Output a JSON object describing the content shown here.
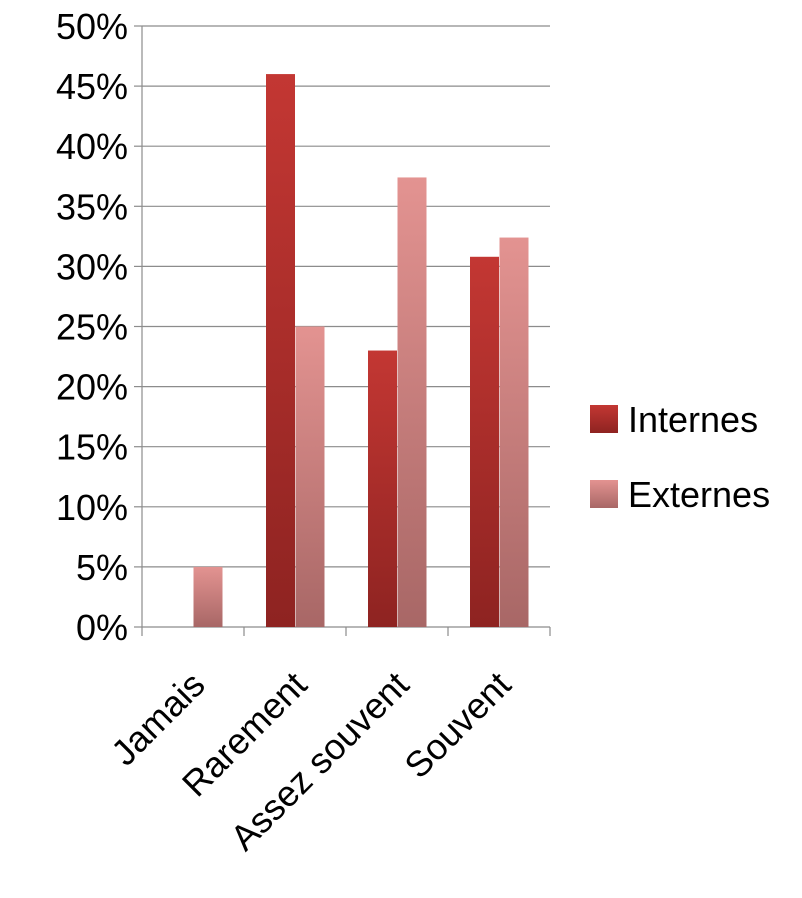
{
  "chart_data": {
    "type": "bar",
    "categories": [
      "Jamais",
      "Rarement",
      "Assez souvent",
      "Souvent"
    ],
    "series": [
      {
        "name": "Internes",
        "values": [
          0,
          46,
          23,
          30.8
        ],
        "color": "#b52d2a"
      },
      {
        "name": "Externes",
        "values": [
          5,
          25,
          37.4,
          32.4
        ],
        "color": "#d98a88"
      }
    ],
    "ylim": [
      0,
      50
    ],
    "yticks": [
      "0%",
      "5%",
      "10%",
      "15%",
      "20%",
      "25%",
      "30%",
      "35%",
      "40%",
      "45%",
      "50%"
    ],
    "ytick_values": [
      0,
      5,
      10,
      15,
      20,
      25,
      30,
      35,
      40,
      45,
      50
    ],
    "grid": true,
    "legend_position": "right",
    "title": "",
    "xlabel": "",
    "ylabel": ""
  }
}
